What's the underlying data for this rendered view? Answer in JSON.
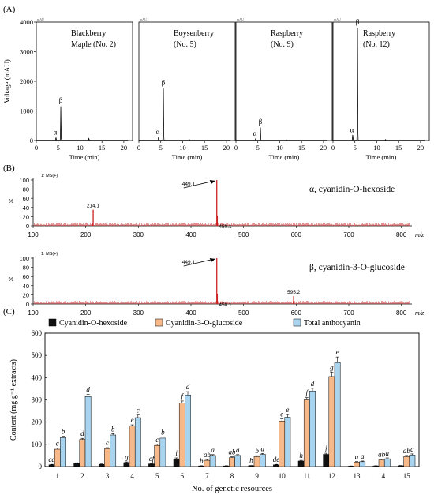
{
  "panel_labels": {
    "a": "(A)",
    "b": "(B)",
    "c": "(C)"
  },
  "chart_data": [
    {
      "type": "line",
      "panel": "A",
      "ylabel_main": "Voltage (mAU)",
      "xlabel": "Time (min)",
      "ylim": [
        0,
        4000
      ],
      "yticks": [
        0,
        1000,
        2000,
        3000,
        4000
      ],
      "xlim": [
        0,
        22
      ],
      "xticks": [
        0,
        5,
        10,
        15,
        20
      ],
      "unit_tag": "mAU",
      "subplots": [
        {
          "title_line1": "Blackberry",
          "title_line2": "Maple (No. 2)",
          "peak_alpha": 90,
          "peak_beta": 1150,
          "minor": [
            {
              "t": 12,
              "h": 60
            }
          ]
        },
        {
          "title_line1": "Boysenberry",
          "title_line2": "(No. 5)",
          "peak_alpha": 110,
          "peak_beta": 1750,
          "minor": [
            {
              "t": 11.5,
              "h": 30
            }
          ]
        },
        {
          "title_line1": "Raspberry",
          "title_line2": "(No. 9)",
          "peak_alpha": 50,
          "peak_beta": 430,
          "minor": [
            {
              "t": 11.5,
              "h": 20
            }
          ]
        },
        {
          "title_line1": "Raspberry",
          "title_line2": "(No. 12)",
          "peak_alpha": 180,
          "peak_beta": 3800,
          "minor": [
            {
              "t": 12,
              "h": 25
            }
          ]
        }
      ],
      "peak_labels": {
        "alpha": "α",
        "beta": "β"
      }
    },
    {
      "type": "bar",
      "panel": "B",
      "ylabel": "%",
      "xlabel": "m/z",
      "xlim": [
        100,
        820
      ],
      "xticks": [
        100,
        200,
        300,
        400,
        500,
        600,
        700,
        800
      ],
      "ylim": [
        0,
        100
      ],
      "yticks": [
        0,
        20,
        40,
        60,
        80,
        100
      ],
      "mode_label": "1: MS(+)",
      "spectra": [
        {
          "title": "α, cyanidin-O-hexoside",
          "peaks": [
            {
              "mz": 214.1,
              "rel": 35,
              "label": "214.1"
            },
            {
              "mz": 449.1,
              "rel": 100,
              "label": "449.1"
            },
            {
              "mz": 450.1,
              "rel": 22,
              "label": "450.1"
            }
          ],
          "arrow_label": "449.1"
        },
        {
          "title": "β, cyanidin-3-O-glucoside",
          "peaks": [
            {
              "mz": 449.1,
              "rel": 100,
              "label": "449.1"
            },
            {
              "mz": 450.1,
              "rel": 22,
              "label": "450.1"
            },
            {
              "mz": 595.2,
              "rel": 17,
              "label": "595.2"
            }
          ],
          "arrow_label": "449.1"
        }
      ]
    },
    {
      "type": "bar",
      "panel": "C",
      "ylabel": "Content (mg g⁻¹ extracts)",
      "xlabel": "No. of genetic resources",
      "ylim": [
        0,
        600
      ],
      "yticks": [
        0,
        100,
        200,
        300,
        400,
        500,
        600
      ],
      "categories": [
        "1",
        "2",
        "3",
        "4",
        "5",
        "6",
        "7",
        "8",
        "9",
        "10",
        "11",
        "12",
        "13",
        "14",
        "15"
      ],
      "legend": "top",
      "series": [
        {
          "name": "Cyanidin-O-hexoside",
          "color": "#111111",
          "values": [
            8,
            15,
            10,
            18,
            12,
            35,
            3,
            3,
            4,
            8,
            25,
            55,
            2,
            3,
            4
          ],
          "errors": [
            2,
            2,
            2,
            3,
            2,
            4,
            1,
            1,
            1,
            2,
            3,
            5,
            1,
            1,
            1
          ],
          "letters": [
            "cd",
            "",
            "",
            "g",
            "ef",
            "i",
            "b",
            "",
            "b",
            "de",
            "h",
            "j",
            "",
            "",
            ""
          ]
        },
        {
          "name": "Cyanidin-3-O-glucoside",
          "color": "#f7b98a",
          "values": [
            78,
            122,
            80,
            182,
            95,
            285,
            28,
            40,
            45,
            205,
            300,
            405,
            20,
            30,
            45
          ],
          "errors": [
            5,
            5,
            5,
            6,
            5,
            10,
            4,
            4,
            4,
            10,
            10,
            20,
            3,
            4,
            5
          ],
          "letters": [
            "c",
            "d",
            "c",
            "e",
            "c",
            "f",
            "ab",
            "ab",
            "b",
            "e",
            "f",
            "g",
            "a",
            "ab",
            "ab"
          ]
        },
        {
          "name": "Total anthocyanin",
          "color": "#a9d4ef",
          "values": [
            130,
            315,
            142,
            220,
            128,
            322,
            50,
            50,
            55,
            222,
            340,
            468,
            22,
            35,
            52
          ],
          "errors": [
            6,
            10,
            6,
            12,
            6,
            15,
            4,
            4,
            4,
            12,
            12,
            25,
            3,
            4,
            5
          ],
          "letters": [
            "b",
            "d",
            "b",
            "c",
            "b",
            "d",
            "a",
            "a",
            "a",
            "e",
            "d",
            "e",
            "a",
            "a",
            "a"
          ]
        }
      ]
    }
  ]
}
